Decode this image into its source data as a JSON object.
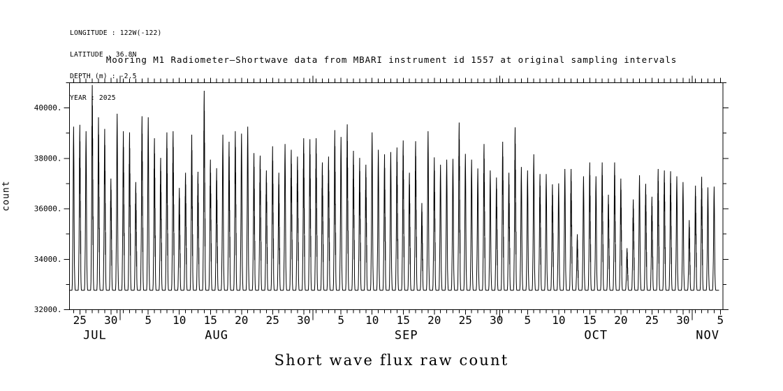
{
  "header_info": {
    "lines": [
      "LONGITUDE : 122W(-122)",
      "LATITUDE . 36.8N",
      "DEPTH (m) : -2.5",
      "YEAR : 2025"
    ]
  },
  "title": "Mooring M1 Radiometer–Shortwave data from MBARI instrument id 1557 at original sampling intervals",
  "caption": "Short wave flux raw count",
  "chart_data": {
    "type": "line",
    "title": "Mooring M1 Radiometer–Shortwave data from MBARI instrument id 1557 at original sampling intervals",
    "xlabel": "",
    "ylabel": "count",
    "caption": "Short wave flux raw count",
    "line_color": "#000000",
    "background": "#ffffff",
    "grid": false,
    "legend": "none",
    "ylim": [
      32000,
      41000
    ],
    "ytick_interval_minor": 1000,
    "yticks_labeled": [
      {
        "value": 40000,
        "label": "40000."
      },
      {
        "value": 38000,
        "label": "38000."
      },
      {
        "value": 36000,
        "label": "36000."
      },
      {
        "value": 34000,
        "label": "34000."
      },
      {
        "value": 32000,
        "label": "32000."
      }
    ],
    "x_axis": {
      "start": "2025-07-23 20:00",
      "end": "2025-11-05 22:00",
      "minor_tick": "1 day",
      "months": [
        {
          "name": "JUL",
          "labeled_days": [
            25,
            30
          ]
        },
        {
          "name": "AUG",
          "labeled_days": [
            5,
            10,
            15,
            20,
            25,
            30
          ]
        },
        {
          "name": "SEP",
          "labeled_days": [
            5,
            10,
            15,
            20,
            25,
            30
          ]
        },
        {
          "name": "OCT",
          "labeled_days": [
            5,
            10,
            15,
            20,
            25,
            30
          ]
        },
        {
          "name": "NOV",
          "labeled_days": [
            5
          ]
        }
      ],
      "month_boundary_ticks": [
        "2025-08-01",
        "2025-09-01",
        "2025-10-01",
        "2025-11-01"
      ]
    },
    "series": [
      {
        "name": "shortwave flux raw count",
        "units": "count",
        "night_baseline": 32770,
        "first_day": "2025-07-24",
        "last_day": "2025-11-04",
        "daily_peaks": [
          39260,
          39330,
          39080,
          40910,
          39630,
          39170,
          37200,
          39770,
          39080,
          39030,
          37060,
          39670,
          39630,
          38800,
          38020,
          39030,
          39080,
          36830,
          37430,
          38940,
          37470,
          40680,
          37950,
          37610,
          38940,
          38660,
          39080,
          38980,
          39260,
          38210,
          38110,
          37520,
          38480,
          37430,
          38570,
          38340,
          38070,
          38800,
          38760,
          38800,
          37840,
          38070,
          39120,
          38850,
          39350,
          38300,
          38020,
          37750,
          39030,
          38340,
          38160,
          38250,
          38430,
          38710,
          37430,
          38680,
          36230,
          39080,
          38040,
          37750,
          37950,
          37980,
          39420,
          38180,
          37950,
          37600,
          38570,
          37520,
          37240,
          38660,
          37430,
          39230,
          37660,
          37520,
          38160,
          37380,
          37380,
          36970,
          37010,
          37580,
          37580,
          34990,
          37290,
          37840,
          37290,
          37840,
          36560,
          37840,
          37200,
          34440,
          36370,
          37330,
          36990,
          36480,
          37580,
          37520,
          37490,
          37290,
          37060,
          35550,
          36920,
          37270,
          36850,
          36880
        ]
      }
    ]
  }
}
